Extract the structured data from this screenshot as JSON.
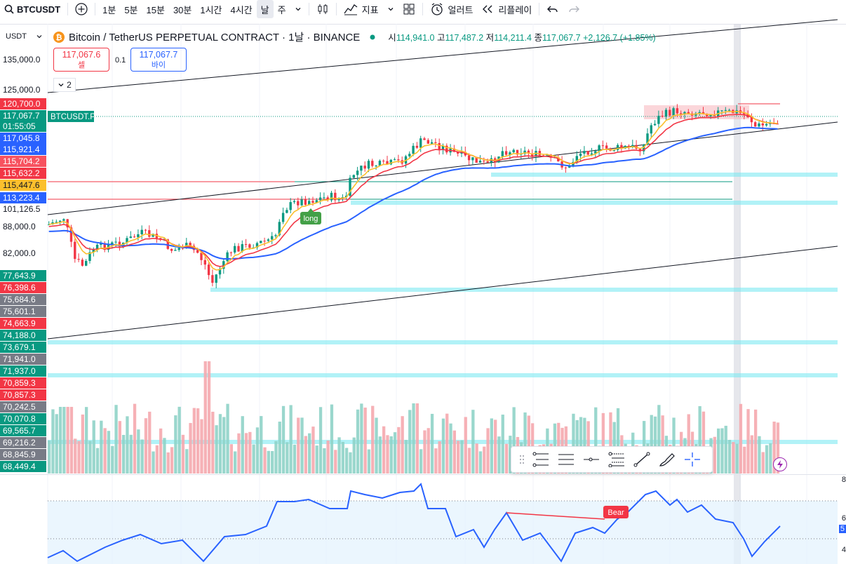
{
  "toolbar": {
    "symbol": "BTCUSDT",
    "intervals": [
      "1분",
      "5분",
      "15분",
      "30분",
      "1시간",
      "4시간",
      "날",
      "주"
    ],
    "active_interval_index": 6,
    "indicators": "지표",
    "alert": "얼러트",
    "replay": "리플레이"
  },
  "currency_select": "USDT",
  "legend": {
    "title": "Bitcoin / TetherUS PERPETUAL CONTRACT · 1날 · BINANCE",
    "open_label": "시",
    "open": "114,941.0",
    "high_label": "고",
    "high": "117,487.2",
    "low_label": "저",
    "low": "114,211.4",
    "close_label": "종",
    "close": "117,067.7",
    "change": "+2,126.7 (+1.85%)"
  },
  "trade": {
    "sell_price": "117,067.6",
    "sell_label": "셀",
    "spread": "0.1",
    "buy_price": "117,067.7",
    "buy_label": "바이",
    "collapse": "2"
  },
  "symbol_tag": "BTCUSDT.P",
  "long_label": "long",
  "bear_label": "Bear",
  "right_axis": {
    "top": "8",
    "mid": "6",
    "mid2": "5",
    "low": "4"
  },
  "price_labels": [
    {
      "text": "135,000.0",
      "bg": "",
      "y": 85
    },
    {
      "text": "125,000.0",
      "bg": "",
      "y": 128
    },
    {
      "text": "120,700.0",
      "bg": "#f23645",
      "y": 148
    },
    {
      "text": "117,067.7",
      "bg": "#089981",
      "y": 165
    },
    {
      "text": "01:55:05",
      "bg": "#089981",
      "y": 180
    },
    {
      "text": "117,045.8",
      "bg": "#2962ff",
      "y": 197
    },
    {
      "text": "115,921.4",
      "bg": "#2962ff",
      "y": 213
    },
    {
      "text": "115,704.2",
      "bg": "#f7525f",
      "y": 230
    },
    {
      "text": "115,632.2",
      "bg": "#f23645",
      "y": 247
    },
    {
      "text": "115,447.6",
      "bg": "#fbc02d",
      "y": 264
    },
    {
      "text": "113,223.4",
      "bg": "#2962ff",
      "y": 282
    },
    {
      "text": "101,126.5",
      "bg": "",
      "y": 298
    },
    {
      "text": "88,000.0",
      "bg": "",
      "y": 323
    },
    {
      "text": "82,000.0",
      "bg": "",
      "y": 361
    },
    {
      "text": "77,643.9",
      "bg": "#089981",
      "y": 393
    },
    {
      "text": "76,398.6",
      "bg": "#f23645",
      "y": 410
    },
    {
      "text": "75,684.6",
      "bg": "#787b86",
      "y": 427
    },
    {
      "text": "75,601.1",
      "bg": "#787b86",
      "y": 444
    },
    {
      "text": "74,663.9",
      "bg": "#f23645",
      "y": 461
    },
    {
      "text": "74,188.0",
      "bg": "#089981",
      "y": 478
    },
    {
      "text": "73,679.1",
      "bg": "#089981",
      "y": 495
    },
    {
      "text": "71,941.0",
      "bg": "#787b86",
      "y": 512
    },
    {
      "text": "71,937.0",
      "bg": "#089981",
      "y": 529
    },
    {
      "text": "70,859.3",
      "bg": "#f23645",
      "y": 546
    },
    {
      "text": "70,857.3",
      "bg": "#f23645",
      "y": 563
    },
    {
      "text": "70,242.5",
      "bg": "#787b86",
      "y": 580
    },
    {
      "text": "70,070.8",
      "bg": "#089981",
      "y": 597
    },
    {
      "text": "69,565.7",
      "bg": "#089981",
      "y": 614
    },
    {
      "text": "69,216.2",
      "bg": "#787b86",
      "y": 631
    },
    {
      "text": "68,845.9",
      "bg": "#787b86",
      "y": 648
    },
    {
      "text": "68,449.4",
      "bg": "#089981",
      "y": 665
    }
  ],
  "colors": {
    "up": "#089981",
    "down": "#f23645",
    "ma_blue": "#2962ff",
    "ema_red": "#f23645",
    "ema_yellow": "#fbc02d",
    "rsi": "#2962ff",
    "zone": "#7deaf2"
  }
}
